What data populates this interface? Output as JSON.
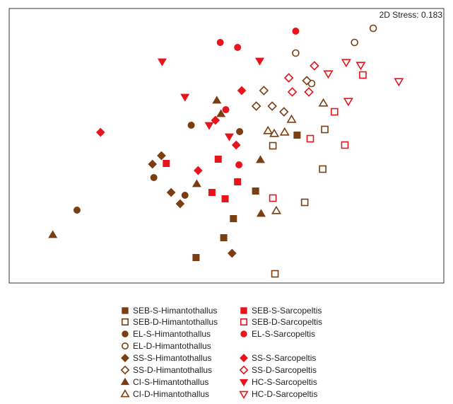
{
  "chart_data": {
    "type": "scatter",
    "title": "",
    "annotation": "2D Stress: 0.183",
    "xlabel": "",
    "ylabel": "",
    "xlim": [
      0,
      628
    ],
    "ylim": [
      -388,
      0
    ],
    "axes_ticks": false,
    "grid": false,
    "legend_position": "bottom",
    "colors": {
      "brown": "#7a3e12",
      "red": "#e8141c"
    },
    "series": [
      {
        "name": "SEB-S-Himantothallus",
        "marker": "square",
        "filled": true,
        "color": "#7a3e12",
        "points": [
          [
            416,
            -179
          ],
          [
            356,
            -258
          ],
          [
            324,
            -297
          ],
          [
            310,
            -324
          ],
          [
            270,
            -352
          ]
        ]
      },
      {
        "name": "SEB-D-Himantothallus",
        "marker": "square",
        "filled": false,
        "color": "#7a3e12",
        "points": [
          [
            456,
            -171
          ],
          [
            381,
            -194
          ],
          [
            453,
            -227
          ],
          [
            427,
            -274
          ],
          [
            384,
            -375
          ]
        ]
      },
      {
        "name": "EL-S-Himantothallus",
        "marker": "circle",
        "filled": true,
        "color": "#7a3e12",
        "points": [
          [
            263,
            -165
          ],
          [
            333,
            -174
          ],
          [
            209,
            -239
          ],
          [
            254,
            -264
          ],
          [
            98,
            -285
          ]
        ]
      },
      {
        "name": "EL-D-Himantothallus",
        "marker": "circle",
        "filled": false,
        "color": "#7a3e12",
        "points": [
          [
            526,
            -28
          ],
          [
            499,
            -48
          ],
          [
            414,
            -63
          ],
          [
            437,
            -106
          ]
        ]
      },
      {
        "name": "SS-S-Himantothallus",
        "marker": "diamond",
        "filled": true,
        "color": "#7a3e12",
        "points": [
          [
            220,
            -208
          ],
          [
            207,
            -220
          ],
          [
            234,
            -260
          ],
          [
            247,
            -276
          ],
          [
            322,
            -346
          ]
        ]
      },
      {
        "name": "SS-D-Himantothallus",
        "marker": "diamond",
        "filled": false,
        "color": "#7a3e12",
        "points": [
          [
            430,
            -102
          ],
          [
            368,
            -116
          ],
          [
            357,
            -138
          ],
          [
            380,
            -138
          ],
          [
            397,
            -146
          ]
        ]
      },
      {
        "name": "CI-S-Himantothallus",
        "marker": "triangle-up",
        "filled": true,
        "color": "#7a3e12",
        "points": [
          [
            300,
            -130
          ],
          [
            306,
            -149
          ],
          [
            363,
            -214
          ],
          [
            271,
            -248
          ],
          [
            364,
            -290
          ],
          [
            63,
            -320
          ]
        ]
      },
      {
        "name": "CI-D-Himantothallus",
        "marker": "triangle-up",
        "filled": false,
        "color": "#7a3e12",
        "points": [
          [
            454,
            -134
          ],
          [
            408,
            -157
          ],
          [
            374,
            -173
          ],
          [
            398,
            -175
          ],
          [
            383,
            -177
          ],
          [
            386,
            -286
          ]
        ]
      },
      {
        "name": "SEB-S-Sarcopeltis",
        "marker": "square",
        "filled": true,
        "color": "#e8141c",
        "points": [
          [
            227,
            -219
          ],
          [
            302,
            -213
          ],
          [
            330,
            -245
          ],
          [
            293,
            -260
          ],
          [
            312,
            -269
          ]
        ]
      },
      {
        "name": "SEB-D-Sarcopeltis",
        "marker": "square",
        "filled": false,
        "color": "#e8141c",
        "points": [
          [
            511,
            -94
          ],
          [
            470,
            -146
          ],
          [
            435,
            -184
          ],
          [
            485,
            -193
          ],
          [
            381,
            -268
          ]
        ]
      },
      {
        "name": "EL-S-Sarcopeltis",
        "marker": "circle",
        "filled": true,
        "color": "#e8141c",
        "points": [
          [
            414,
            -32
          ],
          [
            305,
            -48
          ],
          [
            330,
            -55
          ],
          [
            313,
            -143
          ],
          [
            332,
            -221
          ]
        ]
      },
      {
        "name": "SS-S-Sarcopeltis",
        "marker": "diamond",
        "filled": true,
        "color": "#e8141c",
        "points": [
          [
            336,
            -116
          ],
          [
            298,
            -158
          ],
          [
            132,
            -175
          ],
          [
            328,
            -193
          ],
          [
            273,
            -229
          ]
        ]
      },
      {
        "name": "SS-D-Sarcopeltis",
        "marker": "diamond",
        "filled": false,
        "color": "#e8141c",
        "points": [
          [
            441,
            -81
          ],
          [
            404,
            -98
          ],
          [
            409,
            -118
          ],
          [
            433,
            -118
          ]
        ]
      },
      {
        "name": "HC-S-Sarcopeltis",
        "marker": "triangle-down",
        "filled": true,
        "color": "#e8141c",
        "points": [
          [
            221,
            -75
          ],
          [
            362,
            -74
          ],
          [
            254,
            -125
          ],
          [
            289,
            -165
          ],
          [
            318,
            -181
          ]
        ]
      },
      {
        "name": "HC-D-Sarcopeltis",
        "marker": "triangle-down",
        "filled": false,
        "color": "#e8141c",
        "points": [
          [
            487,
            -76
          ],
          [
            508,
            -80
          ],
          [
            461,
            -92
          ],
          [
            563,
            -103
          ],
          [
            490,
            -131
          ]
        ]
      }
    ]
  }
}
